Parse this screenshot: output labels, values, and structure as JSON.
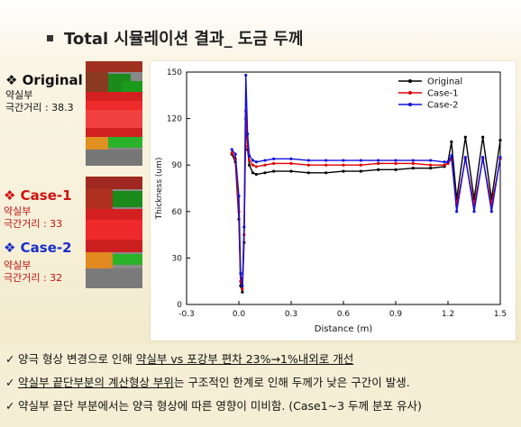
{
  "title": "Total 시뮬레이션 결과_ 도금 두께",
  "cases": [
    {
      "name": "❖ Original",
      "label": "약실부",
      "distance": "극간거리 : 38.3"
    },
    {
      "name": "❖ Case-1",
      "label": "약실부",
      "distance": "극간거리 : 33"
    },
    {
      "name": "❖ Case-2",
      "label": "약실부",
      "distance": "극간거리 : 32"
    }
  ],
  "colors": {
    "original": "#000000",
    "case1": "#e00000",
    "case2": "#1010e0",
    "case_heading_red": "#d01010",
    "case_heading_blue": "#1a2ec8",
    "case_sub_red": "#c01010"
  },
  "chart_data": {
    "type": "line",
    "xlabel": "Distance (m)",
    "ylabel": "Thickness (um)",
    "xlim": [
      -0.3,
      1.5
    ],
    "ylim": [
      0,
      150
    ],
    "xticks": [
      -0.3,
      0.0,
      0.3,
      0.6,
      0.9,
      1.2,
      1.5
    ],
    "yticks": [
      0,
      30,
      60,
      90,
      120,
      150
    ],
    "grid": false,
    "legend_position": "top-right",
    "series": [
      {
        "name": "Original",
        "marker": "square",
        "x": [
          -0.04,
          -0.02,
          0.0,
          0.01,
          0.02,
          0.03,
          0.04,
          0.05,
          0.06,
          0.08,
          0.1,
          0.15,
          0.2,
          0.3,
          0.4,
          0.5,
          0.6,
          0.7,
          0.8,
          0.9,
          1.0,
          1.1,
          1.18,
          1.2,
          1.22,
          1.25,
          1.3,
          1.35,
          1.4,
          1.45,
          1.5
        ],
        "y": [
          97,
          92,
          55,
          12,
          8,
          40,
          120,
          100,
          90,
          85,
          84,
          85,
          86,
          86,
          85,
          85,
          86,
          86,
          87,
          87,
          88,
          88,
          89,
          92,
          105,
          68,
          108,
          68,
          108,
          68,
          106
        ]
      },
      {
        "name": "Case-1",
        "marker": "circle",
        "x": [
          -0.04,
          -0.02,
          0.0,
          0.01,
          0.02,
          0.03,
          0.04,
          0.05,
          0.06,
          0.08,
          0.1,
          0.15,
          0.2,
          0.3,
          0.4,
          0.5,
          0.6,
          0.7,
          0.8,
          0.9,
          1.0,
          1.1,
          1.18,
          1.2,
          1.22,
          1.25,
          1.3,
          1.35,
          1.4,
          1.45,
          1.5
        ],
        "y": [
          98,
          94,
          60,
          15,
          10,
          45,
          125,
          102,
          93,
          90,
          89,
          90,
          91,
          91,
          90,
          90,
          90,
          90,
          91,
          91,
          91,
          90,
          90,
          91,
          94,
          64,
          94,
          64,
          94,
          64,
          94
        ]
      },
      {
        "name": "Case-2",
        "marker": "triangle",
        "x": [
          -0.04,
          -0.02,
          0.0,
          0.01,
          0.02,
          0.03,
          0.04,
          0.05,
          0.06,
          0.08,
          0.1,
          0.15,
          0.2,
          0.3,
          0.4,
          0.5,
          0.6,
          0.7,
          0.8,
          0.9,
          1.0,
          1.1,
          1.18,
          1.2,
          1.22,
          1.25,
          1.3,
          1.35,
          1.4,
          1.45,
          1.5
        ],
        "y": [
          100,
          97,
          70,
          20,
          12,
          50,
          148,
          110,
          96,
          93,
          92,
          93,
          94,
          94,
          93,
          93,
          93,
          93,
          93,
          93,
          93,
          93,
          92,
          92,
          96,
          60,
          95,
          60,
          95,
          60,
          95
        ]
      }
    ]
  },
  "notes": [
    {
      "prefix": "양극 형상 변경으로 인해 ",
      "emph1": "약실부 vs 포강부 편차 23%→1%내외로 개선",
      "suffix": ""
    },
    {
      "prefix": "",
      "emph1": "약실부 끝단부분의 계산형상 부위",
      "suffix": "는 구조적인 한계로 인해 두께가 낮은 구간이 발생."
    },
    {
      "prefix": "약실부 끝단 부분에서는 양극 형상에 따른 영향이 미비함. ",
      "emph1": "(Case1~3 두께 분포 유사)",
      "suffix": ""
    }
  ]
}
